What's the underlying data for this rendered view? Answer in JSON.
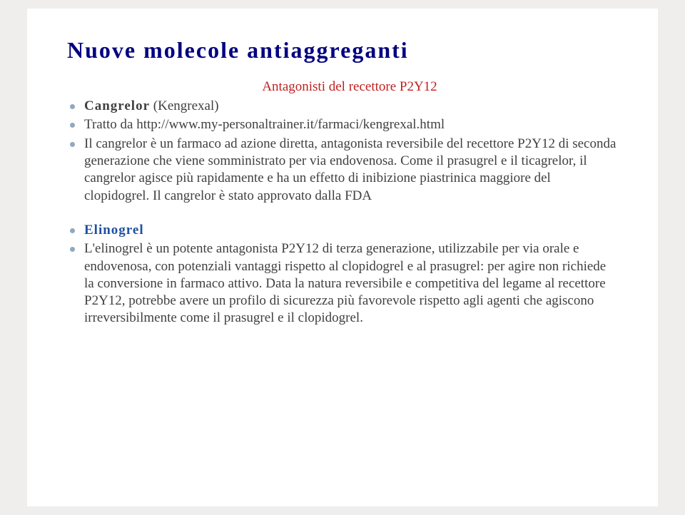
{
  "title": "Nuove molecole antiaggreganti",
  "subtitle": "Antagonisti del recettore P2Y12",
  "items": [
    {
      "html": "<span class='bold'>Cangrelor</span> (Kengrexal)"
    },
    {
      "html": "Tratto da http://www.my-personaltrainer.it/farmaci/kengrexal.html"
    },
    {
      "html": "Il cangrelor è un farmaco ad azione diretta, antagonista reversibile del recettore P2Y12 di seconda generazione che viene somministrato per via endovenosa. Come il prasugrel e il ticagrelor, il cangrelor agisce più rapidamente e ha un effetto di inibizione piastrinica maggiore del clopidogrel. Il cangrelor è stato approvato dalla FDA"
    }
  ],
  "items2": [
    {
      "html": "<span class='blue-heading'>Elinogrel</span>"
    },
    {
      "html": "L'elinogrel è un potente antagonista P2Y12 di terza generazione, utilizzabile per via orale e endovenosa, con potenziali vantaggi rispetto al clopidogrel e al prasugrel: per agire non richiede la conversione in farmaco attivo. Data la natura reversibile e competitiva del legame al recettore P2Y12, potrebbe avere un profilo di sicurezza più favorevole rispetto agli agenti che agiscono irreversibilmente come il prasugrel e il clopidogrel."
    }
  ],
  "colors": {
    "title": "#000080",
    "subtitle": "#c02020",
    "body": "#404040",
    "bullet": "#90a8c0",
    "heading2": "#2050a0",
    "slide_bg": "#ffffff",
    "page_bg": "#efeeed"
  },
  "fontsize": {
    "title": 32,
    "subtitle": 19,
    "body": 19
  }
}
